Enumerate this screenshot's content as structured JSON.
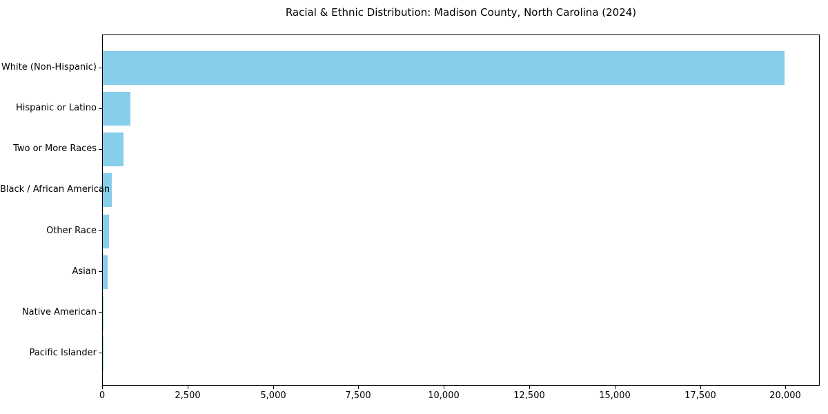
{
  "chart_data": {
    "type": "bar",
    "orientation": "horizontal",
    "title": "Racial & Ethnic Distribution: Madison County, North Carolina (2024)",
    "categories": [
      "White (Non-Hispanic)",
      "Hispanic or Latino",
      "Two or More Races",
      "Black / African American",
      "Other Race",
      "Asian",
      "Native American",
      "Pacific Islander"
    ],
    "values": [
      19950,
      810,
      610,
      255,
      175,
      135,
      30,
      5
    ],
    "xlabel": "",
    "ylabel": "",
    "xlim": [
      0,
      21000
    ],
    "x_ticks": [
      0,
      2500,
      5000,
      7500,
      10000,
      12500,
      15000,
      17500,
      20000
    ],
    "x_tick_labels": [
      "0",
      "2,500",
      "5,000",
      "7,500",
      "10,000",
      "12,500",
      "15,000",
      "17,500",
      "20,000"
    ],
    "bar_color": "#87CEEB",
    "axis_color": "#000000",
    "background_color": "#ffffff",
    "grid": false,
    "legend": null
  }
}
